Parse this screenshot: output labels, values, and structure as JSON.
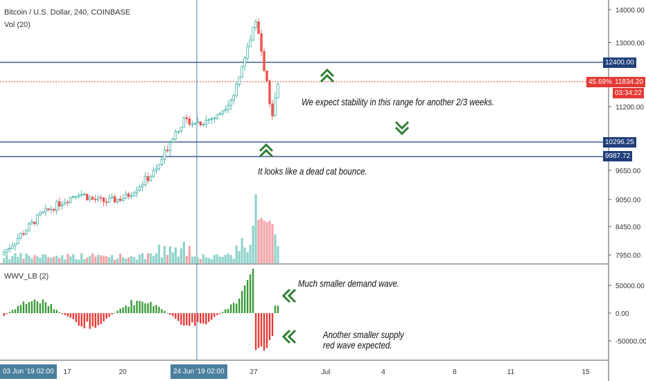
{
  "header": {
    "symbol": "Bitcoin / U.S. Dollar, 240, COINBASE",
    "volume_indicator": "Vol (20)",
    "oscillator_indicator": "WWV_LB (2)"
  },
  "annotations": {
    "stability": "We expect stability in this range for another 2/3 weeks.",
    "dead_cat": "It looks like a dead cat bounce.",
    "demand_wave": "Much smaller demand wave.",
    "supply_wave_line1": "Another smaller supply",
    "supply_wave_line2": "red wave expected."
  },
  "price_badges": {
    "current_price": "11834.20",
    "change_percent": "45.69%",
    "countdown": "03:34:22",
    "level_top": "12400.00",
    "level_mid": "10296.25",
    "level_low": "9987.72"
  },
  "time_badges": [
    "03 Jun '19  02:00",
    "24 Jun '19  02:00"
  ],
  "colors": {
    "up": "#26a69a",
    "down": "#ef5350",
    "volume_up": "#8fd3cc",
    "volume_down": "#f5a3a6",
    "osc_up": "#3a9a3a",
    "osc_down": "#e53935",
    "level_line": "#1f3f7a",
    "badge": "#1f3f7a",
    "current_badge": "#e53935",
    "crosshair": "#4a86b0",
    "arrow": "#2e7d32"
  },
  "chart_data": {
    "type": "candlestick",
    "price_axis_ticks": [
      "14000.00",
      "13000.00",
      "11200.00",
      "9650.00",
      "9050.00",
      "8450.00",
      "7950.00"
    ],
    "oscillator_axis_ticks": [
      "50000.00",
      "0.00",
      "-50000.00"
    ],
    "x_tick_labels": [
      "17",
      "20",
      "27",
      "Jul",
      "4",
      "8",
      "11",
      "15"
    ],
    "price_levels": [
      12400.0,
      10296.25,
      9987.72
    ],
    "current_price": 11834.2,
    "price_series_approx": [
      {
        "x": 0,
        "close": 7950
      },
      {
        "x": 0.1,
        "close": 8450
      },
      {
        "x": 0.14,
        "close": 8700
      },
      {
        "x": 0.22,
        "close": 9000
      },
      {
        "x": 0.28,
        "close": 9200
      },
      {
        "x": 0.33,
        "close": 9050
      },
      {
        "x": 0.38,
        "close": 9000
      },
      {
        "x": 0.45,
        "close": 9100
      },
      {
        "x": 0.52,
        "close": 9450
      },
      {
        "x": 0.56,
        "close": 9650
      },
      {
        "x": 0.62,
        "close": 10450
      },
      {
        "x": 0.66,
        "close": 10850
      },
      {
        "x": 0.72,
        "close": 10800
      },
      {
        "x": 0.78,
        "close": 10950
      },
      {
        "x": 0.84,
        "close": 11500
      },
      {
        "x": 0.88,
        "close": 12500
      },
      {
        "x": 0.92,
        "close": 13750
      },
      {
        "x": 0.95,
        "close": 12200
      },
      {
        "x": 0.98,
        "close": 10900
      },
      {
        "x": 1.0,
        "close": 11834
      }
    ]
  }
}
